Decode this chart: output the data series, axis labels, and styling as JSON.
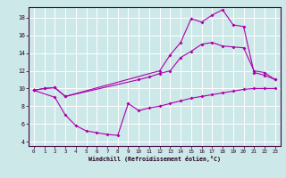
{
  "xlabel": "Windchill (Refroidissement éolien,°C)",
  "bg_color": "#cce8e8",
  "line_color": "#aa00aa",
  "grid_color": "#ffffff",
  "xlim": [
    -0.5,
    23.5
  ],
  "ylim": [
    3.5,
    19.2
  ],
  "xticks": [
    0,
    1,
    2,
    3,
    4,
    5,
    6,
    7,
    8,
    9,
    10,
    11,
    12,
    13,
    14,
    15,
    16,
    17,
    18,
    19,
    20,
    21,
    22,
    23
  ],
  "yticks": [
    4,
    6,
    8,
    10,
    12,
    14,
    16,
    18
  ],
  "line1_x": [
    0,
    1,
    2,
    3,
    10,
    11,
    12,
    13,
    14,
    15,
    16,
    17,
    18,
    19,
    20,
    21,
    22,
    23
  ],
  "line1_y": [
    9.8,
    10.0,
    10.1,
    9.1,
    11.0,
    11.3,
    11.7,
    12.0,
    13.5,
    14.2,
    15.0,
    15.2,
    14.8,
    14.7,
    14.6,
    12.0,
    11.8,
    11.0
  ],
  "line2_x": [
    0,
    1,
    2,
    3,
    12,
    13,
    14,
    15,
    16,
    17,
    18,
    19,
    20,
    21,
    22,
    23
  ],
  "line2_y": [
    9.8,
    10.0,
    10.1,
    9.1,
    12.0,
    13.8,
    15.2,
    17.9,
    17.5,
    18.3,
    18.9,
    17.2,
    17.0,
    11.8,
    11.5,
    11.0
  ],
  "line3_x": [
    0,
    2,
    3,
    4,
    5,
    6,
    7,
    8,
    9,
    10,
    11,
    12,
    13,
    14,
    15,
    16,
    17,
    18,
    19,
    20,
    21,
    22,
    23
  ],
  "line3_y": [
    9.8,
    9.0,
    7.0,
    5.8,
    5.2,
    5.0,
    4.8,
    4.7,
    8.3,
    7.5,
    7.8,
    8.0,
    8.3,
    8.6,
    8.9,
    9.1,
    9.3,
    9.5,
    9.7,
    9.9,
    10.0,
    10.0,
    10.0
  ]
}
